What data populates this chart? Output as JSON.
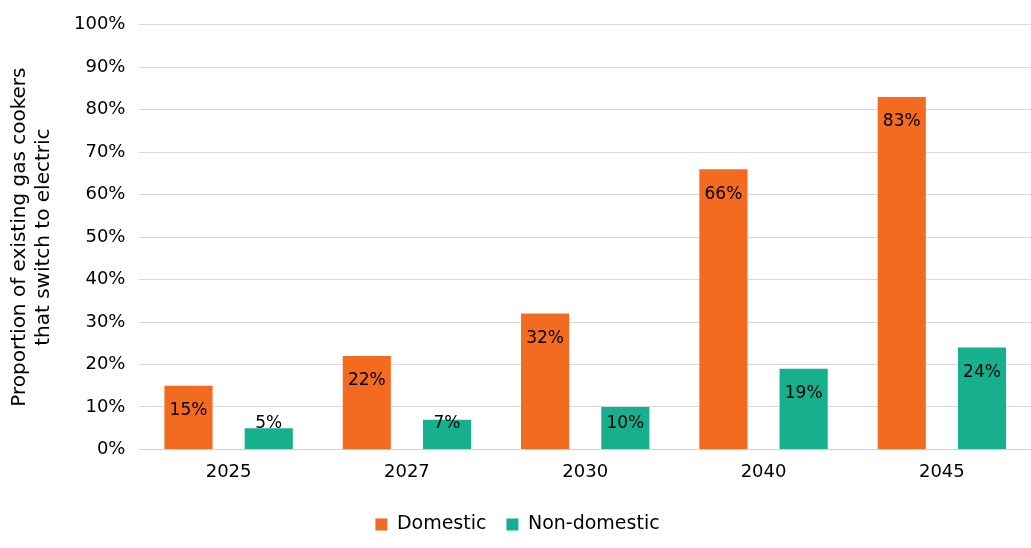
{
  "chart_data": {
    "type": "bar",
    "ylabel": "Proportion of existing gas cookers\nthat switch to electric",
    "categories": [
      "2025",
      "2027",
      "2030",
      "2040",
      "2045"
    ],
    "series": [
      {
        "name": "Domestic",
        "color": "#f26b21",
        "values": [
          15,
          22,
          32,
          66,
          83
        ],
        "value_labels": [
          "15%",
          "22%",
          "32%",
          "66%",
          "83%"
        ]
      },
      {
        "name": "Non-domestic",
        "color": "#17b08f",
        "values": [
          5,
          7,
          10,
          19,
          24
        ],
        "value_labels": [
          "5%",
          "7%",
          "10%",
          "19%",
          "24%"
        ]
      }
    ],
    "ylim": [
      0,
      100
    ],
    "yticks": [
      {
        "value": 0,
        "label": "0%"
      },
      {
        "value": 10,
        "label": "10%"
      },
      {
        "value": 20,
        "label": "20%"
      },
      {
        "value": 30,
        "label": "30%"
      },
      {
        "value": 40,
        "label": "40%"
      },
      {
        "value": 50,
        "label": "50%"
      },
      {
        "value": 60,
        "label": "60%"
      },
      {
        "value": 70,
        "label": "70%"
      },
      {
        "value": 80,
        "label": "80%"
      },
      {
        "value": 90,
        "label": "90%"
      },
      {
        "value": 100,
        "label": "100%"
      }
    ],
    "grid": "y",
    "legend": "bottom"
  }
}
